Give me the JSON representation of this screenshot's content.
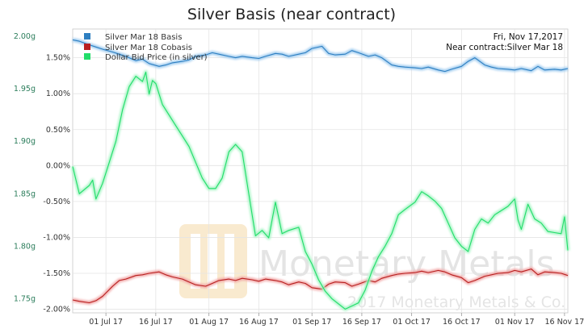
{
  "chart_data": {
    "type": "line",
    "title": "Silver Basis (near contract)",
    "date_label": "Fri, Nov 17,2017",
    "contract_label": "Near contract:Silver Mar 18",
    "watermark": {
      "brand": "Monetary Metals",
      "copyright": "2017 Monetary Metals & Co."
    },
    "x_ticks": [
      "01 Jul 17",
      "16 Jul 17",
      "01 Aug 17",
      "16 Aug 17",
      "01 Sep 17",
      "16 Sep 17",
      "01 Oct 17",
      "16 Oct 17",
      "01 Nov 17",
      "16 Nov 17"
    ],
    "x_range": [
      "2017-06-21",
      "2017-11-17"
    ],
    "y_left": {
      "ticks": [
        "2.00g",
        "1.95g",
        "1.90g",
        "1.85g",
        "1.80g",
        "1.75g"
      ],
      "values": [
        2.0,
        1.95,
        1.9,
        1.85,
        1.8,
        1.75
      ],
      "range": [
        1.7365,
        2.007
      ],
      "color": "#2b7d5b"
    },
    "y_right": {
      "ticks": [
        "1.50%",
        "1.00%",
        "0.50%",
        "0.00%",
        "-0.50%",
        "-1.00%",
        "-1.50%",
        "-2.00%"
      ],
      "values": [
        1.5,
        1.0,
        0.5,
        0.0,
        -0.5,
        -1.0,
        -1.5,
        -2.0
      ],
      "range": [
        -2.05,
        1.9
      ]
    },
    "grid": true,
    "legend_position": "top-left",
    "series": [
      {
        "name": "Silver Mar 18 Basis",
        "color": "#2e7fc1",
        "glow": "#9ecbef",
        "axis": "pct",
        "points": [
          [
            "2017-06-21",
            1.75
          ],
          [
            "2017-06-23",
            1.73
          ],
          [
            "2017-06-26",
            1.68
          ],
          [
            "2017-06-28",
            1.65
          ],
          [
            "2017-06-30",
            1.62
          ],
          [
            "2017-07-03",
            1.58
          ],
          [
            "2017-07-05",
            1.55
          ],
          [
            "2017-07-07",
            1.52
          ],
          [
            "2017-07-10",
            1.46
          ],
          [
            "2017-07-12",
            1.48
          ],
          [
            "2017-07-14",
            1.42
          ],
          [
            "2017-07-17",
            1.38
          ],
          [
            "2017-07-19",
            1.4
          ],
          [
            "2017-07-21",
            1.43
          ],
          [
            "2017-07-24",
            1.45
          ],
          [
            "2017-07-26",
            1.47
          ],
          [
            "2017-07-28",
            1.52
          ],
          [
            "2017-07-31",
            1.54
          ],
          [
            "2017-08-02",
            1.57
          ],
          [
            "2017-08-04",
            1.55
          ],
          [
            "2017-08-07",
            1.52
          ],
          [
            "2017-08-09",
            1.5
          ],
          [
            "2017-08-11",
            1.52
          ],
          [
            "2017-08-14",
            1.5
          ],
          [
            "2017-08-16",
            1.49
          ],
          [
            "2017-08-18",
            1.52
          ],
          [
            "2017-08-21",
            1.56
          ],
          [
            "2017-08-23",
            1.55
          ],
          [
            "2017-08-25",
            1.52
          ],
          [
            "2017-08-28",
            1.55
          ],
          [
            "2017-08-30",
            1.57
          ],
          [
            "2017-09-01",
            1.63
          ],
          [
            "2017-09-04",
            1.66
          ],
          [
            "2017-09-06",
            1.56
          ],
          [
            "2017-09-08",
            1.54
          ],
          [
            "2017-09-11",
            1.55
          ],
          [
            "2017-09-13",
            1.6
          ],
          [
            "2017-09-15",
            1.57
          ],
          [
            "2017-09-18",
            1.52
          ],
          [
            "2017-09-20",
            1.54
          ],
          [
            "2017-09-22",
            1.5
          ],
          [
            "2017-09-25",
            1.4
          ],
          [
            "2017-09-27",
            1.38
          ],
          [
            "2017-09-29",
            1.37
          ],
          [
            "2017-10-02",
            1.36
          ],
          [
            "2017-10-04",
            1.35
          ],
          [
            "2017-10-06",
            1.37
          ],
          [
            "2017-10-09",
            1.33
          ],
          [
            "2017-10-11",
            1.31
          ],
          [
            "2017-10-13",
            1.34
          ],
          [
            "2017-10-16",
            1.38
          ],
          [
            "2017-10-18",
            1.45
          ],
          [
            "2017-10-20",
            1.5
          ],
          [
            "2017-10-23",
            1.4
          ],
          [
            "2017-10-25",
            1.37
          ],
          [
            "2017-10-27",
            1.35
          ],
          [
            "2017-10-30",
            1.34
          ],
          [
            "2017-11-01",
            1.33
          ],
          [
            "2017-11-03",
            1.35
          ],
          [
            "2017-11-06",
            1.32
          ],
          [
            "2017-11-08",
            1.38
          ],
          [
            "2017-11-10",
            1.33
          ],
          [
            "2017-11-13",
            1.34
          ],
          [
            "2017-11-15",
            1.33
          ],
          [
            "2017-11-17",
            1.35
          ]
        ]
      },
      {
        "name": "Silver Mar 18 Cobasis",
        "color": "#b82020",
        "glow": "#f1a6a6",
        "axis": "pct",
        "points": [
          [
            "2017-06-21",
            -1.87
          ],
          [
            "2017-06-23",
            -1.89
          ],
          [
            "2017-06-26",
            -1.91
          ],
          [
            "2017-06-28",
            -1.88
          ],
          [
            "2017-06-30",
            -1.82
          ],
          [
            "2017-07-03",
            -1.68
          ],
          [
            "2017-07-05",
            -1.6
          ],
          [
            "2017-07-07",
            -1.58
          ],
          [
            "2017-07-10",
            -1.53
          ],
          [
            "2017-07-12",
            -1.52
          ],
          [
            "2017-07-14",
            -1.5
          ],
          [
            "2017-07-17",
            -1.48
          ],
          [
            "2017-07-19",
            -1.52
          ],
          [
            "2017-07-21",
            -1.55
          ],
          [
            "2017-07-24",
            -1.58
          ],
          [
            "2017-07-26",
            -1.62
          ],
          [
            "2017-07-28",
            -1.66
          ],
          [
            "2017-07-31",
            -1.68
          ],
          [
            "2017-08-02",
            -1.64
          ],
          [
            "2017-08-04",
            -1.6
          ],
          [
            "2017-08-07",
            -1.58
          ],
          [
            "2017-08-09",
            -1.6
          ],
          [
            "2017-08-11",
            -1.57
          ],
          [
            "2017-08-14",
            -1.59
          ],
          [
            "2017-08-16",
            -1.61
          ],
          [
            "2017-08-18",
            -1.58
          ],
          [
            "2017-08-21",
            -1.6
          ],
          [
            "2017-08-23",
            -1.62
          ],
          [
            "2017-08-25",
            -1.66
          ],
          [
            "2017-08-28",
            -1.62
          ],
          [
            "2017-08-30",
            -1.64
          ],
          [
            "2017-09-01",
            -1.7
          ],
          [
            "2017-09-04",
            -1.72
          ],
          [
            "2017-09-06",
            -1.65
          ],
          [
            "2017-09-08",
            -1.62
          ],
          [
            "2017-09-11",
            -1.63
          ],
          [
            "2017-09-13",
            -1.68
          ],
          [
            "2017-09-15",
            -1.65
          ],
          [
            "2017-09-18",
            -1.6
          ],
          [
            "2017-09-20",
            -1.62
          ],
          [
            "2017-09-22",
            -1.57
          ],
          [
            "2017-09-25",
            -1.53
          ],
          [
            "2017-09-27",
            -1.51
          ],
          [
            "2017-09-29",
            -1.5
          ],
          [
            "2017-10-02",
            -1.49
          ],
          [
            "2017-10-04",
            -1.47
          ],
          [
            "2017-10-06",
            -1.49
          ],
          [
            "2017-10-09",
            -1.46
          ],
          [
            "2017-10-11",
            -1.48
          ],
          [
            "2017-10-13",
            -1.52
          ],
          [
            "2017-10-16",
            -1.56
          ],
          [
            "2017-10-18",
            -1.63
          ],
          [
            "2017-10-20",
            -1.6
          ],
          [
            "2017-10-23",
            -1.54
          ],
          [
            "2017-10-25",
            -1.52
          ],
          [
            "2017-10-27",
            -1.5
          ],
          [
            "2017-10-30",
            -1.49
          ],
          [
            "2017-11-01",
            -1.46
          ],
          [
            "2017-11-03",
            -1.48
          ],
          [
            "2017-11-06",
            -1.44
          ],
          [
            "2017-11-08",
            -1.52
          ],
          [
            "2017-11-10",
            -1.48
          ],
          [
            "2017-11-13",
            -1.49
          ],
          [
            "2017-11-15",
            -1.5
          ],
          [
            "2017-11-17",
            -1.53
          ]
        ]
      },
      {
        "name": "Dollar Bid Price (in silver)",
        "color": "#22dd6a",
        "glow": "#a9f5c6",
        "axis": "grams",
        "points": [
          [
            "2017-06-21",
            1.876
          ],
          [
            "2017-06-23",
            1.85
          ],
          [
            "2017-06-26",
            1.858
          ],
          [
            "2017-06-27",
            1.863
          ],
          [
            "2017-06-28",
            1.845
          ],
          [
            "2017-06-30",
            1.86
          ],
          [
            "2017-07-02",
            1.88
          ],
          [
            "2017-07-04",
            1.9
          ],
          [
            "2017-07-06",
            1.93
          ],
          [
            "2017-07-08",
            1.952
          ],
          [
            "2017-07-10",
            1.962
          ],
          [
            "2017-07-12",
            1.957
          ],
          [
            "2017-07-13",
            1.966
          ],
          [
            "2017-07-14",
            1.945
          ],
          [
            "2017-07-15",
            1.958
          ],
          [
            "2017-07-16",
            1.955
          ],
          [
            "2017-07-18",
            1.935
          ],
          [
            "2017-07-20",
            1.925
          ],
          [
            "2017-07-22",
            1.915
          ],
          [
            "2017-07-24",
            1.905
          ],
          [
            "2017-07-26",
            1.895
          ],
          [
            "2017-07-28",
            1.88
          ],
          [
            "2017-07-30",
            1.865
          ],
          [
            "2017-08-01",
            1.855
          ],
          [
            "2017-08-03",
            1.855
          ],
          [
            "2017-08-05",
            1.865
          ],
          [
            "2017-08-07",
            1.89
          ],
          [
            "2017-08-09",
            1.897
          ],
          [
            "2017-08-11",
            1.89
          ],
          [
            "2017-08-13",
            1.85
          ],
          [
            "2017-08-15",
            1.81
          ],
          [
            "2017-08-17",
            1.815
          ],
          [
            "2017-08-19",
            1.808
          ],
          [
            "2017-08-21",
            1.842
          ],
          [
            "2017-08-23",
            1.812
          ],
          [
            "2017-08-25",
            1.815
          ],
          [
            "2017-08-28",
            1.818
          ],
          [
            "2017-08-30",
            1.795
          ],
          [
            "2017-09-01",
            1.783
          ],
          [
            "2017-09-03",
            1.768
          ],
          [
            "2017-09-05",
            1.757
          ],
          [
            "2017-09-07",
            1.75
          ],
          [
            "2017-09-09",
            1.745
          ],
          [
            "2017-09-11",
            1.74
          ],
          [
            "2017-09-13",
            1.743
          ],
          [
            "2017-09-15",
            1.746
          ],
          [
            "2017-09-17",
            1.758
          ],
          [
            "2017-09-19",
            1.776
          ],
          [
            "2017-09-21",
            1.79
          ],
          [
            "2017-09-23",
            1.8
          ],
          [
            "2017-09-25",
            1.812
          ],
          [
            "2017-09-27",
            1.83
          ],
          [
            "2017-09-29",
            1.835
          ],
          [
            "2017-10-02",
            1.842
          ],
          [
            "2017-10-04",
            1.852
          ],
          [
            "2017-10-06",
            1.848
          ],
          [
            "2017-10-08",
            1.843
          ],
          [
            "2017-10-10",
            1.836
          ],
          [
            "2017-10-12",
            1.822
          ],
          [
            "2017-10-14",
            1.808
          ],
          [
            "2017-10-16",
            1.8
          ],
          [
            "2017-10-18",
            1.795
          ],
          [
            "2017-10-20",
            1.816
          ],
          [
            "2017-10-22",
            1.826
          ],
          [
            "2017-10-24",
            1.822
          ],
          [
            "2017-10-26",
            1.83
          ],
          [
            "2017-10-28",
            1.834
          ],
          [
            "2017-10-30",
            1.838
          ],
          [
            "2017-11-01",
            1.845
          ],
          [
            "2017-11-02",
            1.825
          ],
          [
            "2017-11-03",
            1.816
          ],
          [
            "2017-11-05",
            1.84
          ],
          [
            "2017-11-07",
            1.826
          ],
          [
            "2017-11-09",
            1.822
          ],
          [
            "2017-11-11",
            1.814
          ],
          [
            "2017-11-13",
            1.813
          ],
          [
            "2017-11-15",
            1.812
          ],
          [
            "2017-11-16",
            1.828
          ],
          [
            "2017-11-17",
            1.796
          ]
        ]
      }
    ]
  }
}
